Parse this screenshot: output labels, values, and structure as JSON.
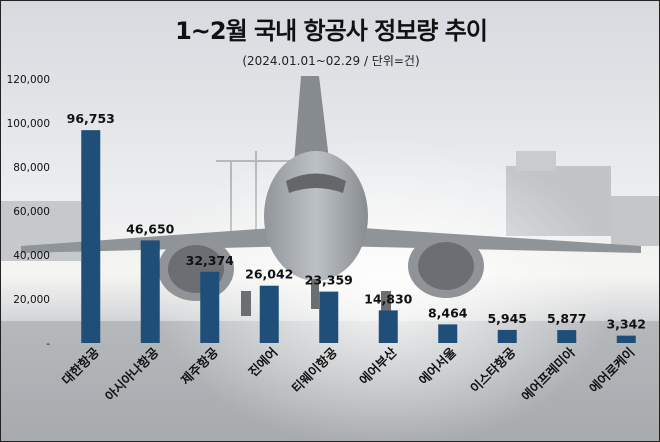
{
  "chart_data": {
    "type": "bar",
    "title": "1~2월 국내 항공사 정보량 추이",
    "subtitle": "(2024.01.01~02.29 / 단위=건)",
    "categories": [
      "대한항공",
      "아시아나항공",
      "제주항공",
      "진에어",
      "티웨이항공",
      "에어부산",
      "에어서울",
      "이스타항공",
      "에어프레미아",
      "에어로케이"
    ],
    "values": [
      96753,
      46650,
      32374,
      26042,
      23359,
      14830,
      8464,
      5945,
      5877,
      3342
    ],
    "value_labels": [
      "96,753",
      "46,650",
      "32,374",
      "26,042",
      "23,359",
      "14,830",
      "8,464",
      "5,945",
      "5,877",
      "3,342"
    ],
    "y_ticks": [
      0,
      20000,
      40000,
      60000,
      80000,
      100000,
      120000
    ],
    "y_tick_labels": [
      "-",
      "20,000",
      "40,000",
      "60,000",
      "80,000",
      "100,000",
      "120,000"
    ],
    "ylim": [
      0,
      120000
    ],
    "grid": false,
    "xlabel": "",
    "ylabel": "",
    "bar_color": "#1f4e79"
  },
  "background": {
    "description_icon": "airplane-on-runway-photo",
    "sky_color": "#d9dde2",
    "ground_color": "#8a8e92"
  }
}
